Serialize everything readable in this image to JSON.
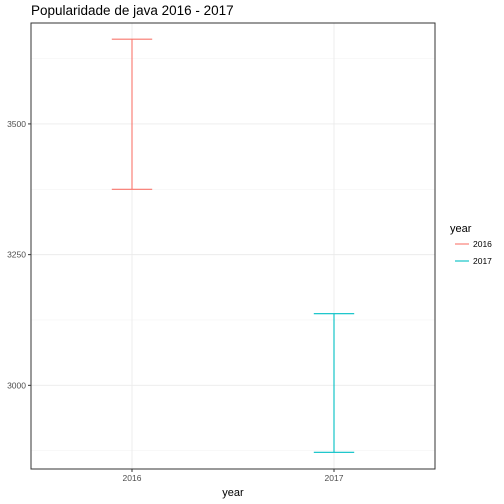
{
  "chart_data": {
    "type": "errorbar",
    "title": "Popularidade de java 2016 - 2017",
    "xlabel": "year",
    "ylabel": "",
    "categories": [
      "2016",
      "2017"
    ],
    "series": [
      {
        "name": "2016",
        "category": "2016",
        "ymin": 3375,
        "ymax": 3662,
        "color": "#F8766D"
      },
      {
        "name": "2017",
        "category": "2017",
        "ymin": 2872,
        "ymax": 3137,
        "color": "#00BFC4"
      }
    ],
    "ylim": [
      2840,
      3693
    ],
    "yticks": [
      3000,
      3250,
      3500
    ],
    "yticks_minor": [
      2875,
      3125,
      3375,
      3625
    ],
    "grid": true,
    "legend": {
      "title": "year",
      "position": "right",
      "entries": [
        "2016",
        "2017"
      ]
    }
  }
}
